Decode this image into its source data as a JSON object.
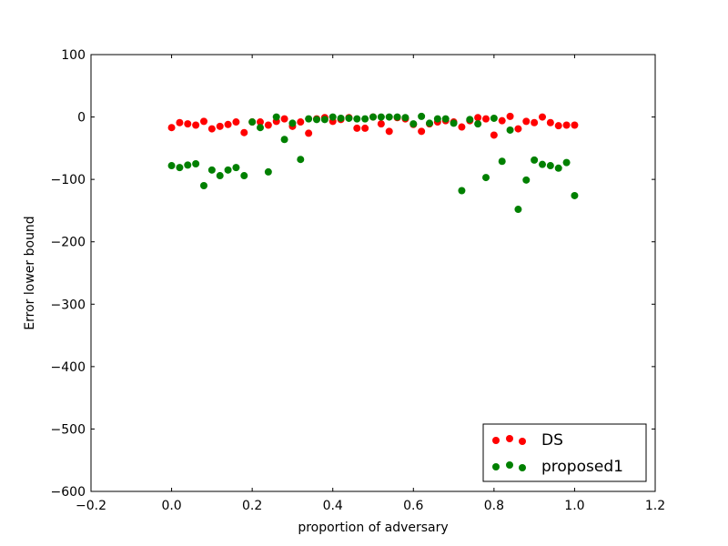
{
  "chart_data": {
    "type": "scatter",
    "xlabel": "proportion of adversary",
    "ylabel": "Error lower bound",
    "xlim": [
      -0.2,
      1.2
    ],
    "ylim": [
      -600,
      100
    ],
    "xticks": [
      -0.2,
      0.0,
      0.2,
      0.4,
      0.6,
      0.8,
      1.0,
      1.2
    ],
    "yticks": [
      100,
      0,
      -100,
      -200,
      -300,
      -400,
      -500,
      -600
    ],
    "xtick_labels": [
      "−0.2",
      "0.0",
      "0.2",
      "0.4",
      "0.6",
      "0.8",
      "1.0",
      "1.2"
    ],
    "ytick_labels": [
      "100",
      "0",
      "−100",
      "−200",
      "−300",
      "−400",
      "−500",
      "−600"
    ],
    "grid": false,
    "legend_position": "lower-right",
    "series": [
      {
        "name": "DS",
        "color": "#ff0000",
        "x": [
          0.0,
          0.02,
          0.04,
          0.06,
          0.08,
          0.1,
          0.12,
          0.14,
          0.16,
          0.18,
          0.2,
          0.22,
          0.24,
          0.26,
          0.28,
          0.3,
          0.32,
          0.34,
          0.36,
          0.38,
          0.4,
          0.42,
          0.44,
          0.46,
          0.48,
          0.5,
          0.52,
          0.54,
          0.56,
          0.58,
          0.6,
          0.62,
          0.64,
          0.66,
          0.68,
          0.7,
          0.72,
          0.74,
          0.76,
          0.78,
          0.8,
          0.82,
          0.84,
          0.86,
          0.88,
          0.9,
          0.92,
          0.94,
          0.96,
          0.98,
          1.0
        ],
        "y": [
          -17,
          -9,
          -11,
          -13,
          -7,
          -19,
          -15,
          -12,
          -8,
          -25,
          -8,
          -8,
          -13,
          -7,
          -3,
          -15,
          -8,
          -26,
          -3,
          -1,
          -7,
          -4,
          -1,
          -18,
          -18,
          0,
          -11,
          -23,
          -1,
          -3,
          -12,
          -23,
          -11,
          -8,
          -6,
          -8,
          -16,
          -6,
          -1,
          -3,
          -29,
          -6,
          1,
          -19,
          -7,
          -9,
          0,
          -9,
          -14,
          -13,
          -13
        ]
      },
      {
        "name": "proposed1",
        "color": "#008000",
        "x": [
          0.0,
          0.02,
          0.04,
          0.06,
          0.08,
          0.1,
          0.12,
          0.14,
          0.16,
          0.18,
          0.2,
          0.22,
          0.24,
          0.26,
          0.28,
          0.3,
          0.32,
          0.34,
          0.36,
          0.38,
          0.4,
          0.42,
          0.44,
          0.46,
          0.48,
          0.5,
          0.52,
          0.54,
          0.56,
          0.58,
          0.6,
          0.62,
          0.64,
          0.66,
          0.68,
          0.7,
          0.72,
          0.74,
          0.76,
          0.78,
          0.8,
          0.82,
          0.84,
          0.86,
          0.88,
          0.9,
          0.92,
          0.94,
          0.96,
          0.98,
          1.0
        ],
        "y": [
          -78,
          -81,
          -77,
          -75,
          -110,
          -85,
          -94,
          -85,
          -81,
          -94,
          -8,
          -17,
          -88,
          0,
          -36,
          -10,
          -68,
          -3,
          -4,
          -4,
          0,
          -2,
          -2,
          -3,
          -3,
          0,
          0,
          0,
          0,
          -1,
          -11,
          1,
          -10,
          -3,
          -3,
          -10,
          -118,
          -4,
          -11,
          -97,
          -2,
          -71,
          -21,
          -148,
          -101,
          -69,
          -76,
          -78,
          -82,
          -73,
          -126
        ]
      }
    ]
  }
}
